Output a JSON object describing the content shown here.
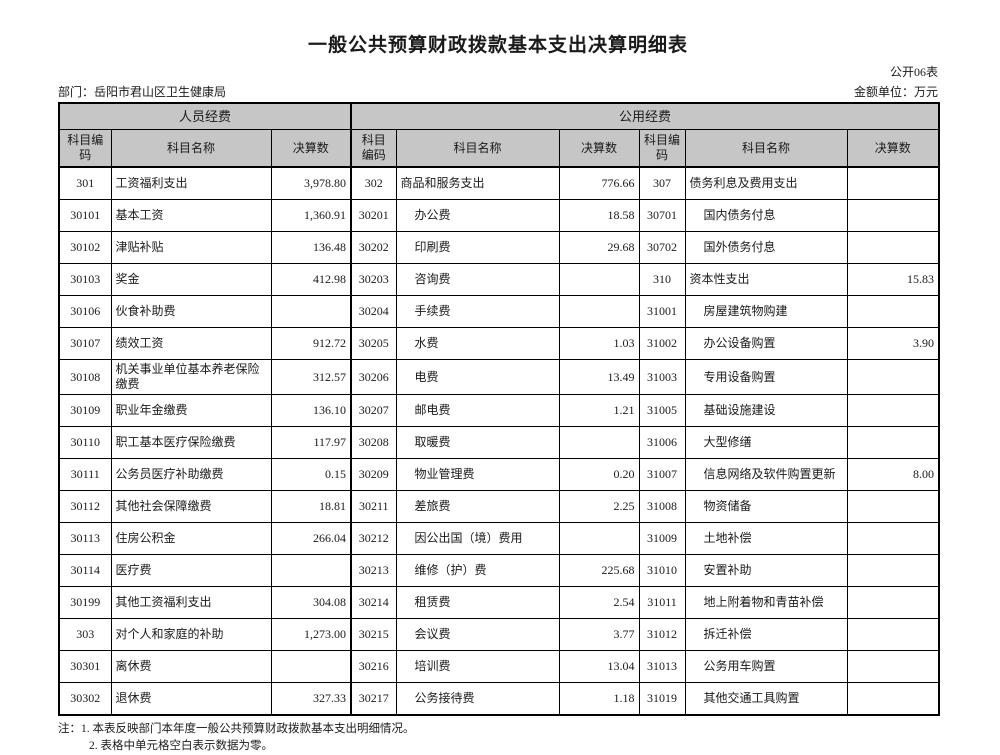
{
  "page": {
    "title": "一般公共预算财政拨款基本支出决算明细表",
    "form_label": "公开06表",
    "department_label": "部门：岳阳市君山区卫生健康局",
    "unit_label": "金额单位：万元"
  },
  "table": {
    "group_headers": [
      "人员经费",
      "公用经费"
    ],
    "column_headers": [
      "科目编码",
      "科目名称",
      "决算数"
    ],
    "rows": [
      [
        "301",
        "工资福利支出",
        "3,978.80",
        "302",
        "商品和服务支出",
        "776.66",
        "307",
        "债务利息及费用支出",
        ""
      ],
      [
        "30101",
        "基本工资",
        "1,360.91",
        "30201",
        "办公费",
        "18.58",
        "30701",
        "国内债务付息",
        ""
      ],
      [
        "30102",
        "津贴补贴",
        "136.48",
        "30202",
        "印刷费",
        "29.68",
        "30702",
        "国外债务付息",
        ""
      ],
      [
        "30103",
        "奖金",
        "412.98",
        "30203",
        "咨询费",
        "",
        "310",
        "资本性支出",
        "15.83"
      ],
      [
        "30106",
        "伙食补助费",
        "",
        "30204",
        "手续费",
        "",
        "31001",
        "房屋建筑物购建",
        ""
      ],
      [
        "30107",
        "绩效工资",
        "912.72",
        "30205",
        "水费",
        "1.03",
        "31002",
        "办公设备购置",
        "3.90"
      ],
      [
        "30108",
        "机关事业单位基本养老保险缴费",
        "312.57",
        "30206",
        "电费",
        "13.49",
        "31003",
        "专用设备购置",
        ""
      ],
      [
        "30109",
        "职业年金缴费",
        "136.10",
        "30207",
        "邮电费",
        "1.21",
        "31005",
        "基础设施建设",
        ""
      ],
      [
        "30110",
        "职工基本医疗保险缴费",
        "117.97",
        "30208",
        "取暖费",
        "",
        "31006",
        "大型修缮",
        ""
      ],
      [
        "30111",
        "公务员医疗补助缴费",
        "0.15",
        "30209",
        "物业管理费",
        "0.20",
        "31007",
        "信息网络及软件购置更新",
        "8.00"
      ],
      [
        "30112",
        "其他社会保障缴费",
        "18.81",
        "30211",
        "差旅费",
        "2.25",
        "31008",
        "物资储备",
        ""
      ],
      [
        "30113",
        "住房公积金",
        "266.04",
        "30212",
        "因公出国（境）费用",
        "",
        "31009",
        "土地补偿",
        ""
      ],
      [
        "30114",
        "医疗费",
        "",
        "30213",
        "维修（护）费",
        "225.68",
        "31010",
        "安置补助",
        ""
      ],
      [
        "30199",
        "其他工资福利支出",
        "304.08",
        "30214",
        "租赁费",
        "2.54",
        "31011",
        "地上附着物和青苗补偿",
        ""
      ],
      [
        "303",
        "对个人和家庭的补助",
        "1,273.00",
        "30215",
        "会议费",
        "3.77",
        "31012",
        "拆迁补偿",
        ""
      ],
      [
        "30301",
        "离休费",
        "",
        "30216",
        "培训费",
        "13.04",
        "31013",
        "公务用车购置",
        ""
      ],
      [
        "30302",
        "退休费",
        "327.33",
        "30217",
        "公务接待费",
        "1.18",
        "31019",
        "其他交通工具购置",
        ""
      ]
    ]
  },
  "notes": {
    "line1": "注：1. 本表反映部门本年度一般公共预算财政拨款基本支出明细情况。",
    "line2": "2. 表格中单元格空白表示数据为零。"
  },
  "colors": {
    "header_bg": "#c6c6c6",
    "border": "#000000",
    "text": "#1a1a1a",
    "page_bg": "#ffffff"
  }
}
